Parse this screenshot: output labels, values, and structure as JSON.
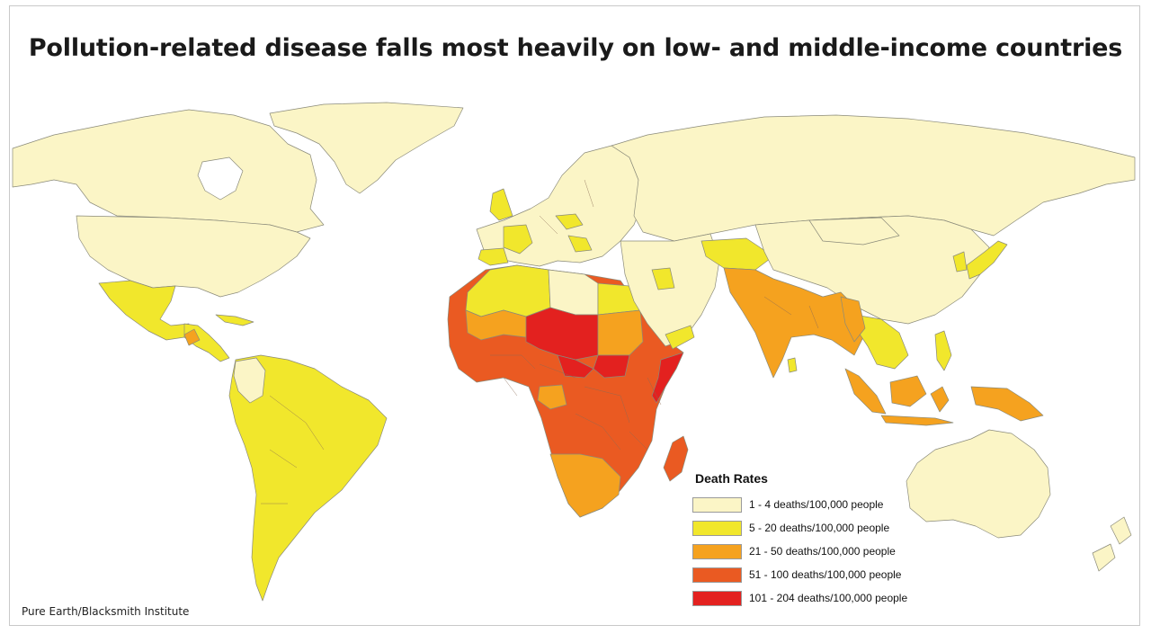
{
  "title": "Pollution-related disease falls most heavily on low- and middle-income countries",
  "credit": "Pure Earth/Blacksmith Institute",
  "legend": {
    "title": "Death Rates",
    "items": [
      {
        "label": "1 - 4 deaths/100,000 people",
        "color": "#fbf5c6"
      },
      {
        "label": "5 - 20 deaths/100,000 people",
        "color": "#f1e72c"
      },
      {
        "label": "21 - 50 deaths/100,000 people",
        "color": "#f5a21f"
      },
      {
        "label": "51 - 100 deaths/100,000 people",
        "color": "#ea5a22"
      },
      {
        "label": "101 - 204 deaths/100,000 people",
        "color": "#e3211f"
      }
    ]
  },
  "colors": {
    "ocean": "#ffffff",
    "border": "#8a8a7a"
  }
}
